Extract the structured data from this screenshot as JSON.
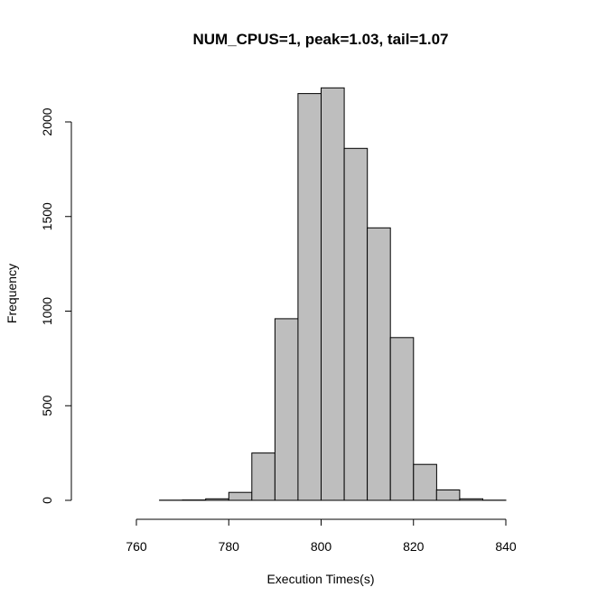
{
  "chart_data": {
    "type": "bar",
    "title": "NUM_CPUS=1, peak=1.03, tail=1.07",
    "xlabel": "Execution Times(s)",
    "ylabel": "Frequency",
    "xlim": [
      760,
      840
    ],
    "ylim": [
      0,
      2000
    ],
    "x_ticks": [
      760,
      780,
      800,
      820,
      840
    ],
    "y_ticks": [
      0,
      500,
      1000,
      1500,
      2000
    ],
    "bin_width": 5,
    "bins": [
      {
        "start": 765,
        "end": 770,
        "count": 1
      },
      {
        "start": 770,
        "end": 775,
        "count": 2
      },
      {
        "start": 775,
        "end": 780,
        "count": 8
      },
      {
        "start": 780,
        "end": 785,
        "count": 42
      },
      {
        "start": 785,
        "end": 790,
        "count": 250
      },
      {
        "start": 790,
        "end": 795,
        "count": 960
      },
      {
        "start": 795,
        "end": 800,
        "count": 2150
      },
      {
        "start": 800,
        "end": 805,
        "count": 2180
      },
      {
        "start": 805,
        "end": 810,
        "count": 1860
      },
      {
        "start": 810,
        "end": 815,
        "count": 1440
      },
      {
        "start": 815,
        "end": 820,
        "count": 860
      },
      {
        "start": 820,
        "end": 825,
        "count": 190
      },
      {
        "start": 825,
        "end": 830,
        "count": 55
      },
      {
        "start": 830,
        "end": 835,
        "count": 8
      },
      {
        "start": 835,
        "end": 840,
        "count": 1
      }
    ],
    "bar_color": "#bebebe",
    "border_color": "#000000",
    "grid": false,
    "legend": "none"
  }
}
